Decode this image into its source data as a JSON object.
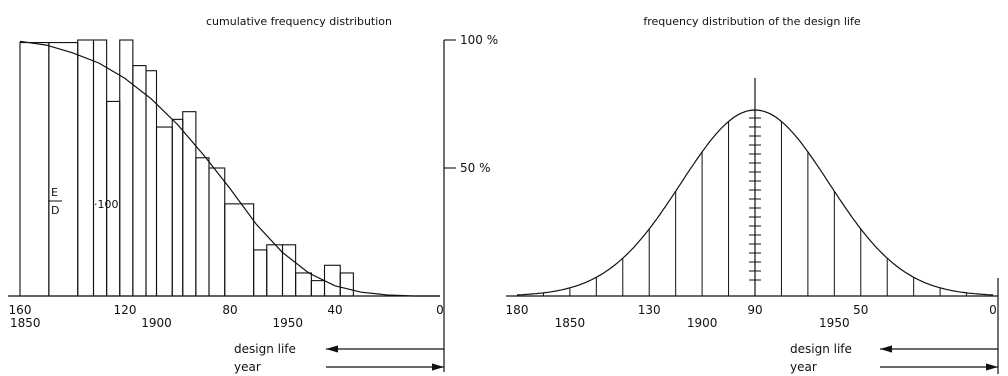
{
  "chart_data": [
    {
      "type": "bar",
      "title": "cumulative frequency distribution",
      "x_axis_top_ticks": [
        "160",
        "120",
        "80",
        "40",
        "0"
      ],
      "x_axis_year_ticks": [
        "1850",
        "1900",
        "1950"
      ],
      "x_axis_top_values": [
        160,
        120,
        80,
        40,
        0
      ],
      "x_axis_year_values": [
        1850,
        1900,
        1950
      ],
      "xlim": [
        160,
        0
      ],
      "y_ticks": [
        "100 %",
        "50 %"
      ],
      "y_tick_values": [
        100,
        50
      ],
      "ylim": [
        0,
        100
      ],
      "annotation_fraction_numerator": "E",
      "annotation_fraction_denominator": "D",
      "annotation_factor": "·100",
      "design_life_label": "design life",
      "year_label": "year",
      "bars": [
        {
          "x0": 160,
          "x1": 149,
          "value": 99
        },
        {
          "x0": 149,
          "x1": 138,
          "value": 99
        },
        {
          "x0": 138,
          "x1": 132,
          "value": 100
        },
        {
          "x0": 132,
          "x1": 127,
          "value": 100
        },
        {
          "x0": 127,
          "x1": 122,
          "value": 76
        },
        {
          "x0": 122,
          "x1": 117,
          "value": 100
        },
        {
          "x0": 117,
          "x1": 112,
          "value": 90
        },
        {
          "x0": 112,
          "x1": 108,
          "value": 88
        },
        {
          "x0": 108,
          "x1": 102,
          "value": 66
        },
        {
          "x0": 102,
          "x1": 98,
          "value": 69
        },
        {
          "x0": 98,
          "x1": 93,
          "value": 72
        },
        {
          "x0": 93,
          "x1": 88,
          "value": 54
        },
        {
          "x0": 88,
          "x1": 82,
          "value": 50
        },
        {
          "x0": 82,
          "x1": 71,
          "value": 36
        },
        {
          "x0": 71,
          "x1": 66,
          "value": 18
        },
        {
          "x0": 66,
          "x1": 60,
          "value": 20
        },
        {
          "x0": 60,
          "x1": 55,
          "value": 20
        },
        {
          "x0": 55,
          "x1": 49,
          "value": 9
        },
        {
          "x0": 49,
          "x1": 44,
          "value": 6
        },
        {
          "x0": 44,
          "x1": 38,
          "value": 12
        },
        {
          "x0": 38,
          "x1": 33,
          "value": 9
        }
      ],
      "curve": [
        {
          "x": 160,
          "y": 99.5
        },
        {
          "x": 150,
          "y": 98
        },
        {
          "x": 140,
          "y": 95
        },
        {
          "x": 130,
          "y": 91
        },
        {
          "x": 120,
          "y": 85
        },
        {
          "x": 110,
          "y": 77
        },
        {
          "x": 100,
          "y": 67
        },
        {
          "x": 90,
          "y": 55
        },
        {
          "x": 80,
          "y": 42
        },
        {
          "x": 70,
          "y": 28
        },
        {
          "x": 60,
          "y": 17
        },
        {
          "x": 50,
          "y": 9
        },
        {
          "x": 40,
          "y": 4
        },
        {
          "x": 30,
          "y": 1.5
        },
        {
          "x": 20,
          "y": 0.4
        },
        {
          "x": 10,
          "y": 0
        },
        {
          "x": 0,
          "y": 0
        }
      ]
    },
    {
      "type": "area",
      "title": "frequency distribution of the design life",
      "x_axis_top_ticks": [
        "180",
        "130",
        "90",
        "50",
        "0"
      ],
      "x_axis_year_ticks": [
        "1850",
        "1900",
        "1950"
      ],
      "x_axis_top_values": [
        180,
        130,
        90,
        50,
        0
      ],
      "x_axis_year_values": [
        1850,
        1900,
        1950
      ],
      "xlim": [
        180,
        0
      ],
      "mean": 90,
      "peak": 1,
      "design_life_label": "design life",
      "year_label": "year"
    }
  ]
}
